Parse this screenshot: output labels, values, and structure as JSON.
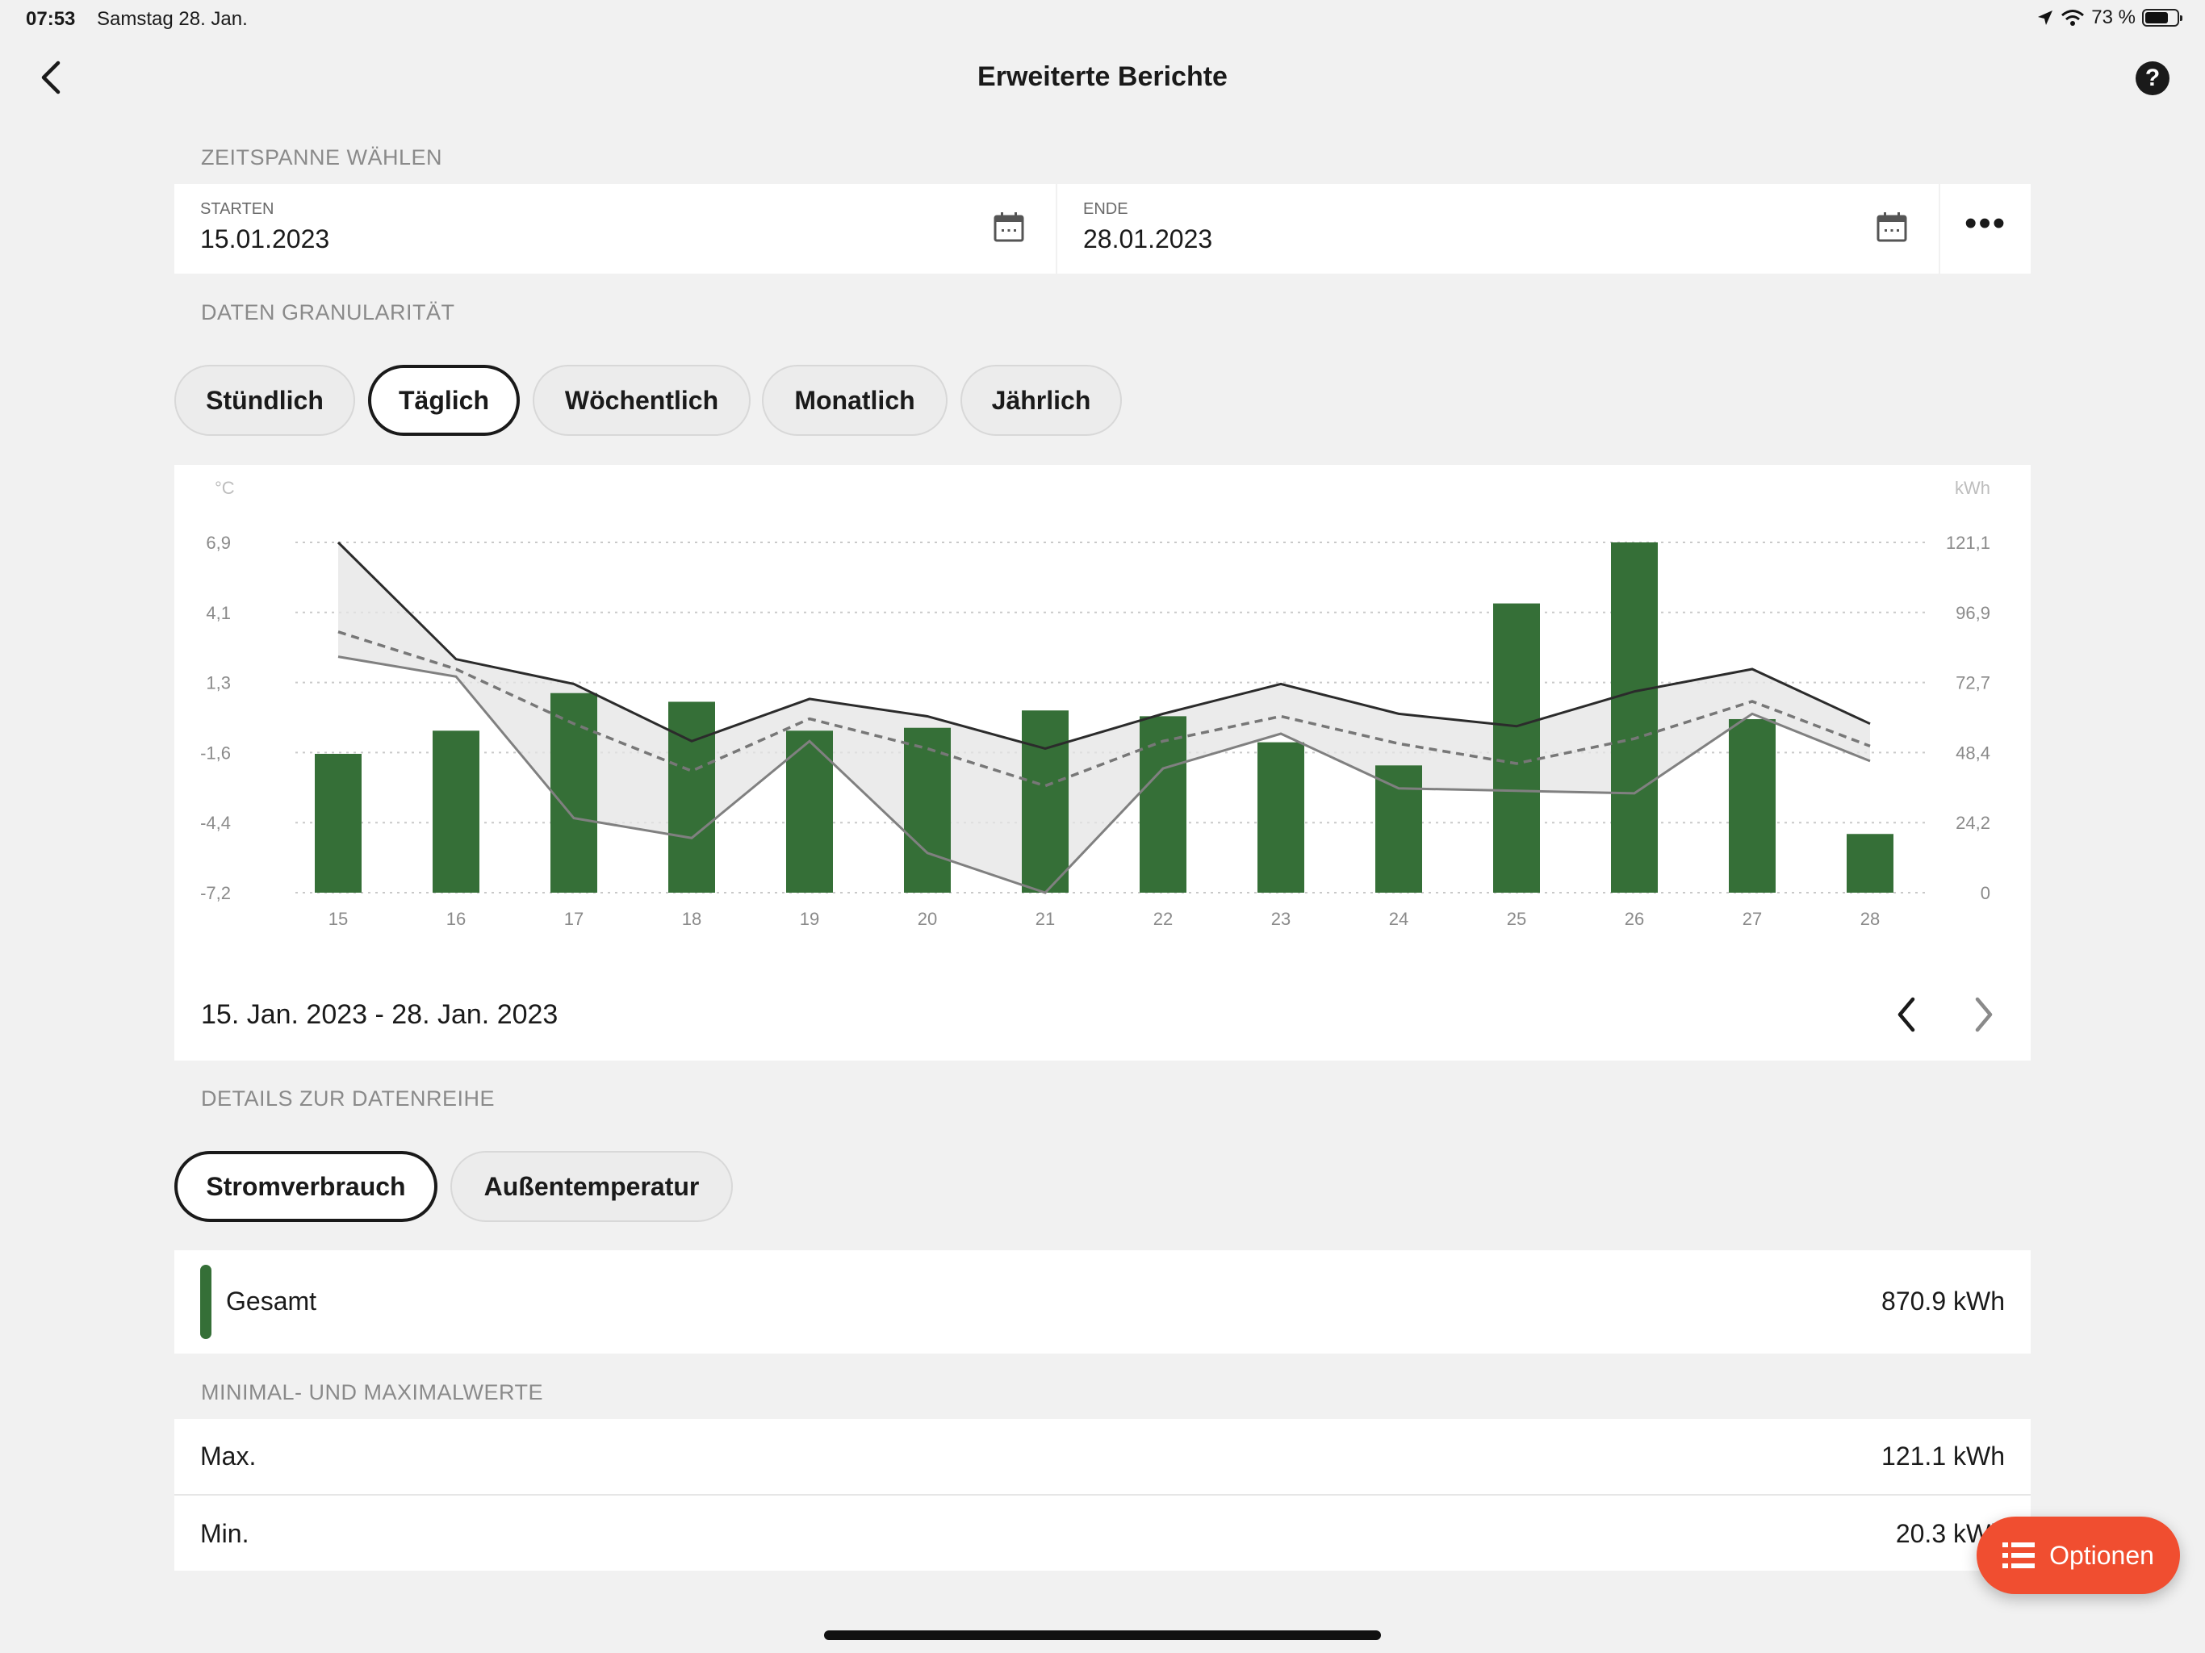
{
  "status_bar": {
    "time": "07:53",
    "date": "Samstag 28. Jan.",
    "battery": "73 %",
    "battery_level": 0.73
  },
  "header": {
    "title": "Erweiterte Berichte",
    "help": "?"
  },
  "timespan": {
    "section_label": "ZEITSPANNE WÄHLEN",
    "start": {
      "label": "STARTEN",
      "value": "15.01.2023"
    },
    "end": {
      "label": "ENDE",
      "value": "28.01.2023"
    },
    "more": "•••"
  },
  "granularity": {
    "section_label": "DATEN GRANULARITÄT",
    "options": [
      "Stündlich",
      "Täglich",
      "Wöchentlich",
      "Monatlich",
      "Jährlich"
    ],
    "selected": "Täglich"
  },
  "chart_data": {
    "type": "bar",
    "y_left_unit": "°C",
    "y_right_unit": "kWh",
    "y_left_ticks": [
      "6,9",
      "4,1",
      "1,3",
      "-1,6",
      "-4,4",
      "-7,2"
    ],
    "y_right_ticks": [
      "121,1",
      "96,9",
      "72,7",
      "48,4",
      "24,2",
      "0"
    ],
    "ylim_left": [
      -7.2,
      6.9
    ],
    "ylim_right": [
      0,
      121.1
    ],
    "categories": [
      "15",
      "16",
      "17",
      "18",
      "19",
      "20",
      "21",
      "22",
      "23",
      "24",
      "25",
      "26",
      "27",
      "28"
    ],
    "bars_kwh": [
      48,
      56,
      69,
      66,
      56,
      57,
      63,
      61,
      52,
      44,
      100,
      121.1,
      60,
      20.3
    ],
    "temp_max": [
      6.9,
      2.2,
      1.2,
      -1.1,
      0.6,
      -0.1,
      -1.4,
      0.0,
      1.2,
      0.0,
      -0.5,
      0.9,
      1.8,
      -0.4
    ],
    "temp_avg": [
      3.3,
      1.8,
      -0.4,
      -2.3,
      -0.2,
      -1.4,
      -2.9,
      -1.1,
      -0.1,
      -1.2,
      -2.0,
      -1.0,
      0.5,
      -1.3
    ],
    "temp_min": [
      2.3,
      1.5,
      -4.2,
      -5.0,
      -1.1,
      -5.6,
      -7.2,
      -2.2,
      -0.8,
      -3.0,
      -3.1,
      -3.2,
      0.0,
      -1.9
    ],
    "colors": {
      "bars": "#356f37",
      "max_line": "#2b2b2b",
      "avg_line": "#777777",
      "min_line": "#808080",
      "band": "#e4e4e4",
      "axis_text": "#8a8a8a"
    },
    "grid": true
  },
  "chart_nav": {
    "range": "15. Jan. 2023 - 28. Jan. 2023"
  },
  "series_details": {
    "section_label": "DETAILS ZUR DATENREIHE",
    "tabs": [
      "Stromverbrauch",
      "Außentemperatur"
    ],
    "selected": "Stromverbrauch",
    "total": {
      "label": "Gesamt",
      "value": "870.9 kWh",
      "color": "#356f37"
    }
  },
  "minmax": {
    "section_label": "MINIMAL- UND MAXIMALWERTE",
    "max": {
      "label": "Max.",
      "value": "121.1 kWh"
    },
    "min": {
      "label": "Min.",
      "value": "20.3 kWh"
    }
  },
  "fab": {
    "label": "Optionen",
    "color": "#f04e30"
  }
}
